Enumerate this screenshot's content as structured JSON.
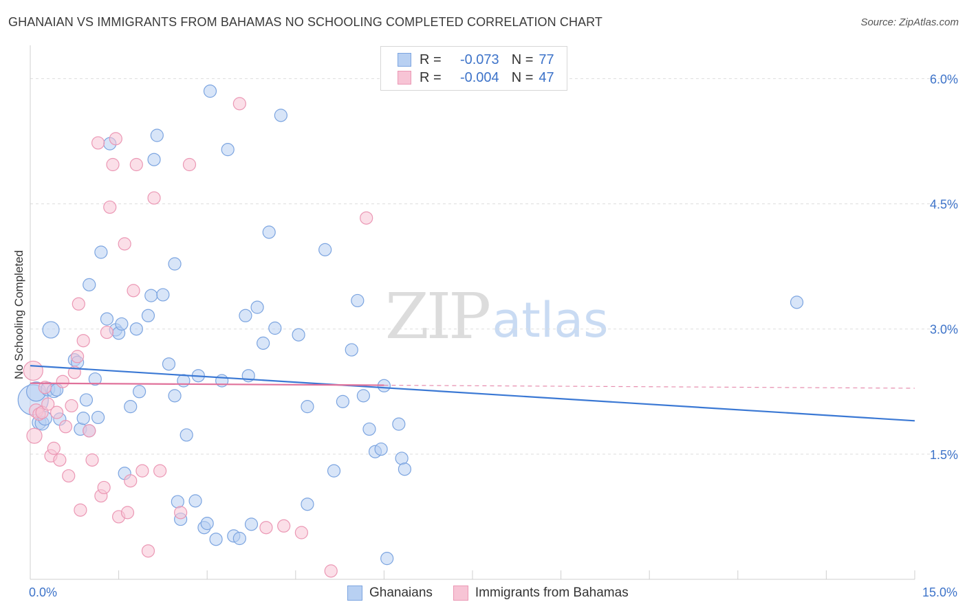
{
  "title": "GHANAIAN VS IMMIGRANTS FROM BAHAMAS NO SCHOOLING COMPLETED CORRELATION CHART",
  "source": "Source: ZipAtlas.com",
  "watermark": {
    "zip": "ZIP",
    "atlas": "atlas"
  },
  "legend": {
    "r_label": "R =",
    "n_label": "N =",
    "rows": [
      {
        "name": "Ghanaians",
        "r": "-0.073",
        "n": "77"
      },
      {
        "name": "Immigrants from Bahamas",
        "r": "-0.004",
        "n": "47"
      }
    ]
  },
  "colors": {
    "blue_fill": "#b8d0f2",
    "blue_stroke": "#7ba4e0",
    "blue_line": "#3a78d4",
    "pink_fill": "#f7c4d5",
    "pink_stroke": "#eb97b4",
    "pink_line": "#e0719a",
    "tick_text": "#3d73c9",
    "grid": "#dddddd"
  },
  "chart_data": {
    "type": "scatter",
    "title": "GHANAIAN VS IMMIGRANTS FROM BAHAMAS NO SCHOOLING COMPLETED CORRELATION CHART",
    "xlabel": "",
    "ylabel": "No Schooling Completed",
    "xlim": [
      0,
      15
    ],
    "ylim": [
      0,
      6.3
    ],
    "x_tick_labels": [
      "0.0%",
      "15.0%"
    ],
    "y_ticks": [
      {
        "value": 1.5,
        "label": "1.5%"
      },
      {
        "value": 3.0,
        "label": "3.0%"
      },
      {
        "value": 4.5,
        "label": "4.5%"
      },
      {
        "value": 6.0,
        "label": "6.0%"
      }
    ],
    "x_minor_ticks": [
      1.5,
      3.0,
      4.5,
      6.0,
      7.5,
      9.0,
      10.5,
      12.0,
      13.5,
      15.0
    ],
    "grid": true,
    "series": [
      {
        "name": "Ghanaians",
        "color": "blue",
        "trend": {
          "x": [
            0,
            15
          ],
          "y": [
            2.56,
            1.9
          ],
          "dashed_from": null
        },
        "points": [
          {
            "x": 0.05,
            "y": 2.15,
            "s": 22
          },
          {
            "x": 0.1,
            "y": 2.25,
            "s": 14
          },
          {
            "x": 0.15,
            "y": 1.88,
            "s": 10
          },
          {
            "x": 0.2,
            "y": 1.87,
            "s": 10
          },
          {
            "x": 0.25,
            "y": 1.93,
            "s": 10
          },
          {
            "x": 0.3,
            "y": 2.28,
            "s": 10
          },
          {
            "x": 0.35,
            "y": 2.99,
            "s": 12
          },
          {
            "x": 0.4,
            "y": 2.26,
            "s": 10
          },
          {
            "x": 0.45,
            "y": 2.27,
            "s": 9
          },
          {
            "x": 0.5,
            "y": 1.92,
            "s": 9
          },
          {
            "x": 0.75,
            "y": 2.63,
            "s": 9
          },
          {
            "x": 0.8,
            "y": 2.6,
            "s": 9
          },
          {
            "x": 0.85,
            "y": 1.8,
            "s": 9
          },
          {
            "x": 0.9,
            "y": 1.93,
            "s": 9
          },
          {
            "x": 0.95,
            "y": 2.15,
            "s": 9
          },
          {
            "x": 1.0,
            "y": 1.78,
            "s": 9
          },
          {
            "x": 1.0,
            "y": 3.53,
            "s": 9
          },
          {
            "x": 1.1,
            "y": 2.4,
            "s": 9
          },
          {
            "x": 1.15,
            "y": 1.94,
            "s": 9
          },
          {
            "x": 1.2,
            "y": 3.92,
            "s": 9
          },
          {
            "x": 1.3,
            "y": 3.12,
            "s": 9
          },
          {
            "x": 1.35,
            "y": 5.22,
            "s": 9
          },
          {
            "x": 1.45,
            "y": 2.99,
            "s": 9
          },
          {
            "x": 1.5,
            "y": 2.95,
            "s": 9
          },
          {
            "x": 1.55,
            "y": 3.06,
            "s": 9
          },
          {
            "x": 1.6,
            "y": 1.27,
            "s": 9
          },
          {
            "x": 1.7,
            "y": 2.07,
            "s": 9
          },
          {
            "x": 1.8,
            "y": 3.0,
            "s": 9
          },
          {
            "x": 1.85,
            "y": 2.25,
            "s": 9
          },
          {
            "x": 2.0,
            "y": 3.16,
            "s": 9
          },
          {
            "x": 2.05,
            "y": 3.4,
            "s": 9
          },
          {
            "x": 2.1,
            "y": 5.03,
            "s": 9
          },
          {
            "x": 2.15,
            "y": 5.32,
            "s": 9
          },
          {
            "x": 2.25,
            "y": 3.41,
            "s": 9
          },
          {
            "x": 2.35,
            "y": 2.58,
            "s": 9
          },
          {
            "x": 2.45,
            "y": 3.78,
            "s": 9
          },
          {
            "x": 2.45,
            "y": 2.2,
            "s": 9
          },
          {
            "x": 2.5,
            "y": 0.93,
            "s": 9
          },
          {
            "x": 2.55,
            "y": 0.72,
            "s": 9
          },
          {
            "x": 2.6,
            "y": 2.38,
            "s": 9
          },
          {
            "x": 2.65,
            "y": 1.73,
            "s": 9
          },
          {
            "x": 2.8,
            "y": 0.94,
            "s": 9
          },
          {
            "x": 2.85,
            "y": 2.44,
            "s": 9
          },
          {
            "x": 2.95,
            "y": 0.62,
            "s": 9
          },
          {
            "x": 3.0,
            "y": 0.67,
            "s": 9
          },
          {
            "x": 3.05,
            "y": 5.85,
            "s": 9
          },
          {
            "x": 3.15,
            "y": 0.48,
            "s": 9
          },
          {
            "x": 3.25,
            "y": 2.38,
            "s": 9
          },
          {
            "x": 3.35,
            "y": 5.15,
            "s": 9
          },
          {
            "x": 3.45,
            "y": 0.52,
            "s": 9
          },
          {
            "x": 3.55,
            "y": 0.49,
            "s": 9
          },
          {
            "x": 3.65,
            "y": 3.16,
            "s": 9
          },
          {
            "x": 3.7,
            "y": 2.44,
            "s": 9
          },
          {
            "x": 3.75,
            "y": 0.66,
            "s": 9
          },
          {
            "x": 3.85,
            "y": 3.26,
            "s": 9
          },
          {
            "x": 3.95,
            "y": 2.83,
            "s": 9
          },
          {
            "x": 4.05,
            "y": 4.16,
            "s": 9
          },
          {
            "x": 4.15,
            "y": 3.01,
            "s": 9
          },
          {
            "x": 4.25,
            "y": 5.56,
            "s": 9
          },
          {
            "x": 4.55,
            "y": 2.93,
            "s": 9
          },
          {
            "x": 4.7,
            "y": 2.07,
            "s": 9
          },
          {
            "x": 4.7,
            "y": 0.9,
            "s": 9
          },
          {
            "x": 5.0,
            "y": 3.95,
            "s": 9
          },
          {
            "x": 5.15,
            "y": 1.3,
            "s": 9
          },
          {
            "x": 5.3,
            "y": 2.13,
            "s": 9
          },
          {
            "x": 5.55,
            "y": 3.34,
            "s": 9
          },
          {
            "x": 5.45,
            "y": 2.75,
            "s": 9
          },
          {
            "x": 5.65,
            "y": 2.2,
            "s": 9
          },
          {
            "x": 5.75,
            "y": 1.8,
            "s": 9
          },
          {
            "x": 5.85,
            "y": 1.53,
            "s": 9
          },
          {
            "x": 5.95,
            "y": 1.56,
            "s": 9
          },
          {
            "x": 6.05,
            "y": 0.25,
            "s": 9
          },
          {
            "x": 6.0,
            "y": 2.32,
            "s": 9
          },
          {
            "x": 6.25,
            "y": 1.86,
            "s": 9
          },
          {
            "x": 6.3,
            "y": 1.45,
            "s": 9
          },
          {
            "x": 6.35,
            "y": 1.32,
            "s": 9
          },
          {
            "x": 13.0,
            "y": 3.32,
            "s": 9
          }
        ]
      },
      {
        "name": "Immigrants from Bahamas",
        "color": "pink",
        "trend": {
          "x": [
            0,
            15
          ],
          "y": [
            2.35,
            2.29
          ],
          "dashed_from": 6.0
        },
        "points": [
          {
            "x": 0.05,
            "y": 2.5,
            "s": 14
          },
          {
            "x": 0.07,
            "y": 1.72,
            "s": 11
          },
          {
            "x": 0.1,
            "y": 2.02,
            "s": 10
          },
          {
            "x": 0.15,
            "y": 1.98,
            "s": 9
          },
          {
            "x": 0.2,
            "y": 2.0,
            "s": 9
          },
          {
            "x": 0.25,
            "y": 2.3,
            "s": 9
          },
          {
            "x": 0.3,
            "y": 2.1,
            "s": 9
          },
          {
            "x": 0.35,
            "y": 1.48,
            "s": 9
          },
          {
            "x": 0.4,
            "y": 1.57,
            "s": 9
          },
          {
            "x": 0.45,
            "y": 2.0,
            "s": 9
          },
          {
            "x": 0.5,
            "y": 1.43,
            "s": 9
          },
          {
            "x": 0.55,
            "y": 2.37,
            "s": 9
          },
          {
            "x": 0.6,
            "y": 1.83,
            "s": 9
          },
          {
            "x": 0.65,
            "y": 1.24,
            "s": 9
          },
          {
            "x": 0.7,
            "y": 2.08,
            "s": 9
          },
          {
            "x": 0.75,
            "y": 2.48,
            "s": 9
          },
          {
            "x": 0.8,
            "y": 2.67,
            "s": 9
          },
          {
            "x": 0.82,
            "y": 3.3,
            "s": 9
          },
          {
            "x": 0.85,
            "y": 0.83,
            "s": 9
          },
          {
            "x": 0.9,
            "y": 2.86,
            "s": 9
          },
          {
            "x": 1.0,
            "y": 1.78,
            "s": 9
          },
          {
            "x": 1.05,
            "y": 1.43,
            "s": 9
          },
          {
            "x": 1.15,
            "y": 5.23,
            "s": 9
          },
          {
            "x": 1.2,
            "y": 1.0,
            "s": 9
          },
          {
            "x": 1.25,
            "y": 1.1,
            "s": 9
          },
          {
            "x": 1.3,
            "y": 2.96,
            "s": 9
          },
          {
            "x": 1.35,
            "y": 4.46,
            "s": 9
          },
          {
            "x": 1.4,
            "y": 4.97,
            "s": 9
          },
          {
            "x": 1.45,
            "y": 5.28,
            "s": 9
          },
          {
            "x": 1.5,
            "y": 0.75,
            "s": 9
          },
          {
            "x": 1.6,
            "y": 4.02,
            "s": 9
          },
          {
            "x": 1.65,
            "y": 0.8,
            "s": 9
          },
          {
            "x": 1.7,
            "y": 1.18,
            "s": 9
          },
          {
            "x": 1.75,
            "y": 3.46,
            "s": 9
          },
          {
            "x": 1.8,
            "y": 4.97,
            "s": 9
          },
          {
            "x": 1.9,
            "y": 1.3,
            "s": 9
          },
          {
            "x": 2.0,
            "y": 0.34,
            "s": 9
          },
          {
            "x": 2.1,
            "y": 4.57,
            "s": 9
          },
          {
            "x": 2.2,
            "y": 1.3,
            "s": 9
          },
          {
            "x": 2.55,
            "y": 0.8,
            "s": 9
          },
          {
            "x": 2.7,
            "y": 4.97,
            "s": 9
          },
          {
            "x": 3.55,
            "y": 5.7,
            "s": 9
          },
          {
            "x": 4.0,
            "y": 0.62,
            "s": 9
          },
          {
            "x": 4.3,
            "y": 0.64,
            "s": 9
          },
          {
            "x": 4.6,
            "y": 0.56,
            "s": 9
          },
          {
            "x": 5.1,
            "y": 0.1,
            "s": 9
          },
          {
            "x": 5.7,
            "y": 4.33,
            "s": 9
          }
        ]
      }
    ]
  }
}
